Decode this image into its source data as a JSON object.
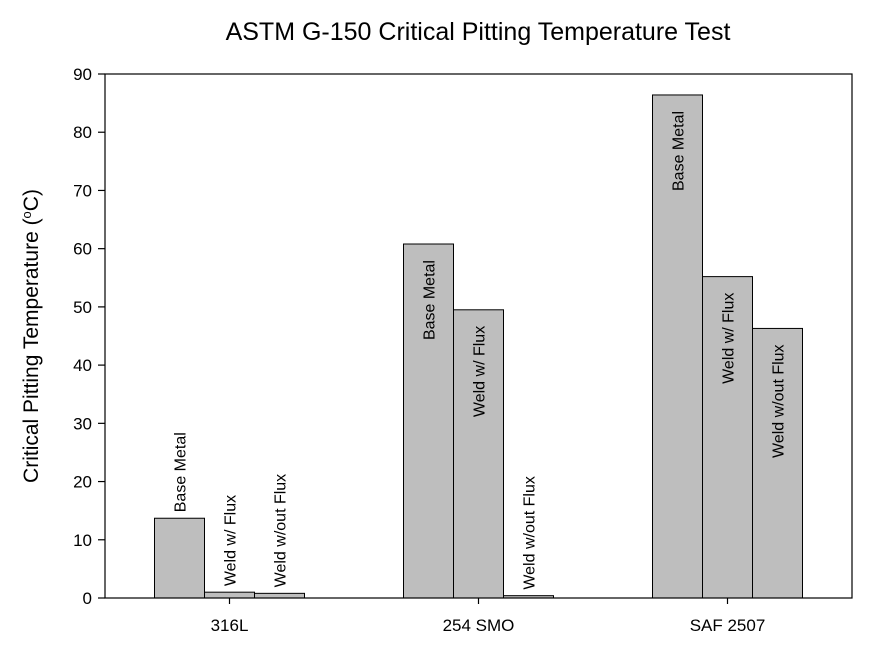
{
  "chart_data": {
    "type": "bar",
    "title": "ASTM G-150 Critical Pitting Temperature Test",
    "ylabel": {
      "prefix": "Critical Pitting Temperature (",
      "superscript": "o",
      "suffix": "C)"
    },
    "xlabel": "",
    "ylim": [
      0,
      90
    ],
    "yticks": [
      "0",
      "10",
      "20",
      "30",
      "40",
      "50",
      "60",
      "70",
      "80",
      "90"
    ],
    "categories": [
      "316L",
      "254 SMO",
      "SAF 2507"
    ],
    "series": [
      {
        "name": "Base Metal",
        "values": [
          13.7,
          60.8,
          86.4
        ]
      },
      {
        "name": "Weld w/ Flux",
        "values": [
          1.0,
          49.5,
          55.2
        ]
      },
      {
        "name": "Weld w/out Flux",
        "values": [
          0.8,
          0.4,
          46.3
        ]
      }
    ],
    "bar_labels": [
      [
        "Base Metal",
        "Weld w/ Flux",
        "Weld w/out Flux"
      ],
      [
        "Base Metal",
        "Weld w/ Flux",
        "Weld w/out Flux"
      ],
      [
        "Base Metal",
        "Weld w/ Flux",
        "Weld w/out Flux"
      ]
    ],
    "bar_color": "#bebebe",
    "grid": false,
    "legend": "none"
  }
}
